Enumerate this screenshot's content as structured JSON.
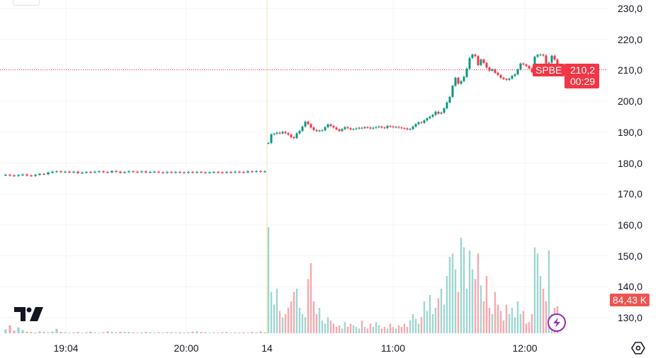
{
  "symbol": "SPBE",
  "last_price_label": "210,2",
  "countdown": "00:29",
  "volume_label": "84,43 K",
  "colors": {
    "up": "#089981",
    "down": "#f23645",
    "up_volume": "#9fd6d0",
    "down_volume": "#f7a9ae",
    "price_line": "#f23645",
    "accent": "#9c27b0"
  },
  "icons": {
    "logo": "tradingview-logo",
    "settings": "settings-hexagon-icon",
    "bolt": "lightning-icon"
  },
  "chart_data": {
    "type": "candlestick",
    "price_axis": {
      "ticks": [
        "230,0",
        "220,0",
        "210,0",
        "200,0",
        "190,0",
        "180,0",
        "170,0",
        "160,0",
        "150,0",
        "140,0",
        "130,0"
      ],
      "values": [
        230,
        220,
        210,
        200,
        190,
        180,
        170,
        160,
        150,
        140,
        130
      ],
      "range": [
        127.3,
        232.7
      ]
    },
    "time_axis": {
      "ticks": [
        "19:04",
        "20:00",
        "14",
        "11:00",
        "12:00"
      ]
    },
    "last_price": 210.2,
    "grid": true,
    "sessions": [
      {
        "closes": [
          176.2,
          176.0,
          175.9,
          176.1,
          176.3,
          176.0,
          175.9,
          176.2,
          176.5,
          176.4,
          176.9,
          177.2,
          177.3,
          177.1,
          177.2,
          177.0,
          177.2,
          176.8,
          176.9,
          177.1,
          177.0,
          177.2,
          177.3,
          177.1,
          177.0,
          177.4,
          177.2,
          176.9,
          177.1,
          177.3,
          177.2,
          177.1,
          177.3,
          177.0,
          177.1,
          177.2,
          177.0,
          176.9,
          177.1,
          177.0,
          177.1,
          177.0,
          176.9,
          177.1,
          177.0,
          177.1,
          177.0,
          176.9,
          177.0,
          177.1,
          177.0,
          176.9,
          177.1,
          177.0,
          177.2,
          177.1,
          177.0,
          177.3,
          177.2,
          177.4,
          177.2,
          177.3
        ],
        "volumes": [
          12,
          25,
          8,
          18,
          10,
          5,
          4,
          3,
          6,
          4,
          3,
          5,
          14,
          4,
          3,
          2,
          3,
          4,
          2,
          3,
          5,
          3,
          2,
          3,
          6,
          4,
          3,
          5,
          4,
          4,
          3,
          2,
          3,
          4,
          3,
          2,
          3,
          2,
          4,
          3,
          2,
          3,
          2,
          3,
          5,
          6,
          4,
          3,
          2,
          3,
          2,
          3,
          4,
          2,
          3,
          2,
          3,
          2,
          4,
          3,
          5,
          3
        ]
      },
      {
        "closes": [
          186.5,
          189.3,
          189.5,
          189.8,
          189.6,
          190.1,
          189.7,
          189.2,
          188.4,
          188.1,
          189.6,
          190.4,
          191.8,
          193.4,
          192.6,
          191.5,
          190.7,
          190.4,
          190.5,
          190.6,
          191.6,
          192.5,
          192.0,
          191.5,
          190.9,
          190.4,
          191.0,
          191.6,
          191.3,
          190.9,
          191.0,
          191.2,
          191.4,
          191.3,
          191.6,
          191.5,
          191.2,
          191.4,
          191.6,
          191.8,
          191.5,
          191.3,
          192.0,
          191.8,
          191.6,
          191.7,
          191.5,
          191.3,
          191.2,
          190.9,
          191.0,
          191.8,
          192.6,
          193.2,
          193.0,
          193.8,
          194.5,
          195.0,
          195.6,
          196.6,
          196.0,
          196.3,
          197.7,
          199.6,
          201.4,
          205.0,
          207.6,
          205.7,
          206.5,
          207.9,
          210.5,
          214.0,
          215.1,
          214.6,
          211.7,
          213.5,
          212.4,
          210.9,
          209.9,
          210.3,
          209.2,
          208.5,
          207.6,
          207.2,
          206.9,
          207.3,
          208.2,
          208.7,
          210.3,
          212.2,
          211.9,
          211.4,
          210.6,
          209.4,
          214.4,
          215.0,
          215.1,
          214.8,
          212.2,
          212.5,
          214.7,
          213.5,
          210.2
        ],
        "volumes": [
          333,
          130,
          90,
          140,
          70,
          50,
          60,
          80,
          100,
          130,
          140,
          80,
          60,
          50,
          170,
          220,
          100,
          60,
          80,
          40,
          30,
          50,
          40,
          30,
          20,
          25,
          15,
          35,
          20,
          30,
          25,
          20,
          15,
          40,
          20,
          15,
          30,
          20,
          35,
          25,
          15,
          20,
          15,
          30,
          20,
          15,
          25,
          20,
          30,
          20,
          40,
          60,
          45,
          30,
          50,
          100,
          70,
          120,
          60,
          80,
          110,
          140,
          90,
          180,
          240,
          250,
          200,
          130,
          300,
          270,
          140,
          260,
          200,
          170,
          250,
          150,
          100,
          180,
          80,
          60,
          130,
          90,
          70,
          40,
          90,
          60,
          80,
          50,
          100,
          60,
          70,
          30,
          35,
          60,
          270,
          250,
          180,
          140,
          100,
          260,
          60,
          80,
          84.43
        ]
      }
    ]
  }
}
